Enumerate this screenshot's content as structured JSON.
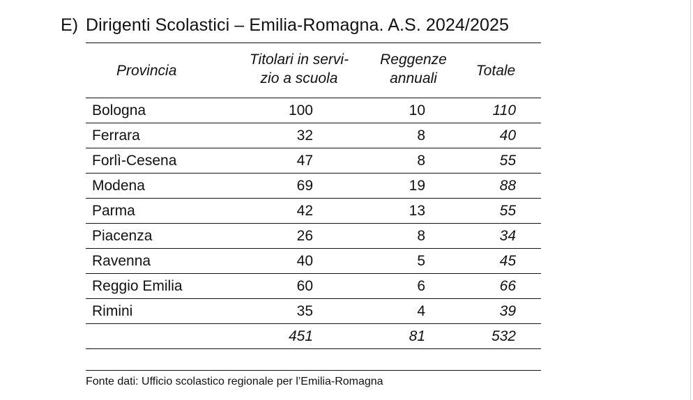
{
  "title": {
    "letter": "E)",
    "text": "Dirigenti Scolastici – Emilia-Romagna. A.S. 2024/2025"
  },
  "table": {
    "headers": {
      "provincia": "Provincia",
      "titolari_line1": "Titolari in servi-",
      "titolari_line2": "zio a scuola",
      "reggenze_line1": "Reggenze",
      "reggenze_line2": "annuali",
      "totale": "Totale"
    },
    "rows": [
      {
        "provincia": "Bologna",
        "titolari": "100",
        "reggenze": "10",
        "totale": "110"
      },
      {
        "provincia": "Ferrara",
        "titolari": "32",
        "reggenze": "8",
        "totale": "40"
      },
      {
        "provincia": "Forlì-Cesena",
        "titolari": "47",
        "reggenze": "8",
        "totale": "55"
      },
      {
        "provincia": "Modena",
        "titolari": "69",
        "reggenze": "19",
        "totale": "88"
      },
      {
        "provincia": "Parma",
        "titolari": "42",
        "reggenze": "13",
        "totale": "55"
      },
      {
        "provincia": "Piacenza",
        "titolari": "26",
        "reggenze": "8",
        "totale": "34"
      },
      {
        "provincia": "Ravenna",
        "titolari": "40",
        "reggenze": "5",
        "totale": "45"
      },
      {
        "provincia": "Reggio Emilia",
        "titolari": "60",
        "reggenze": "6",
        "totale": "66"
      },
      {
        "provincia": "Rimini",
        "titolari": "35",
        "reggenze": "4",
        "totale": "39"
      }
    ],
    "total": {
      "provincia": "",
      "titolari": "451",
      "reggenze": "81",
      "totale": "532"
    }
  },
  "source": "Fonte dati: Ufficio scolastico regionale per l’Emilia-Romagna"
}
